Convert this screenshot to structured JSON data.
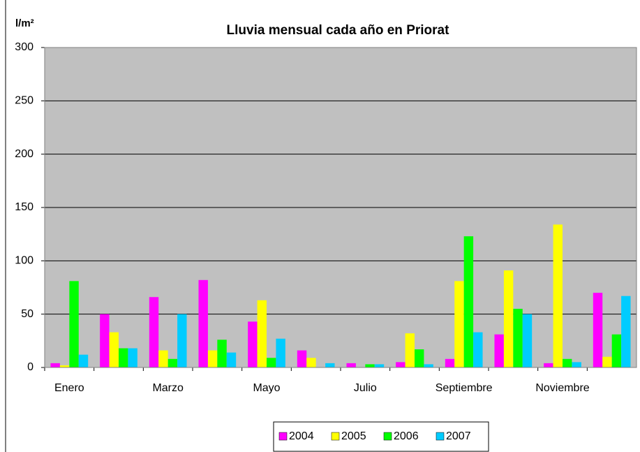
{
  "chart_data": {
    "type": "bar",
    "title": "Lluvia mensual cada año en Priorat",
    "y_label": "l/m²",
    "categories": [
      "Enero",
      null,
      "Marzo",
      null,
      "Mayo",
      null,
      "Julio",
      null,
      "Septiembre",
      null,
      "Noviembre",
      null
    ],
    "series": [
      {
        "name": "2004",
        "color": "#ff00ff",
        "values": [
          4,
          50,
          66,
          82,
          43,
          16,
          4,
          5,
          8,
          31,
          4,
          70
        ]
      },
      {
        "name": "2005",
        "color": "#ffff00",
        "values": [
          2,
          33,
          16,
          16,
          63,
          9,
          0,
          32,
          81,
          91,
          134,
          10
        ]
      },
      {
        "name": "2006",
        "color": "#00ff00",
        "values": [
          81,
          18,
          8,
          26,
          9,
          0,
          3,
          17,
          123,
          55,
          8,
          31
        ]
      },
      {
        "name": "2007",
        "color": "#00ccff",
        "values": [
          12,
          18,
          50,
          14,
          27,
          4,
          3,
          3,
          33,
          50,
          5,
          67
        ]
      }
    ],
    "ylim": [
      0,
      300
    ],
    "yticks": [
      0,
      50,
      100,
      150,
      200,
      250,
      300
    ],
    "grid": true,
    "legend": "bottom",
    "plot_background": "#c0c0c0"
  }
}
